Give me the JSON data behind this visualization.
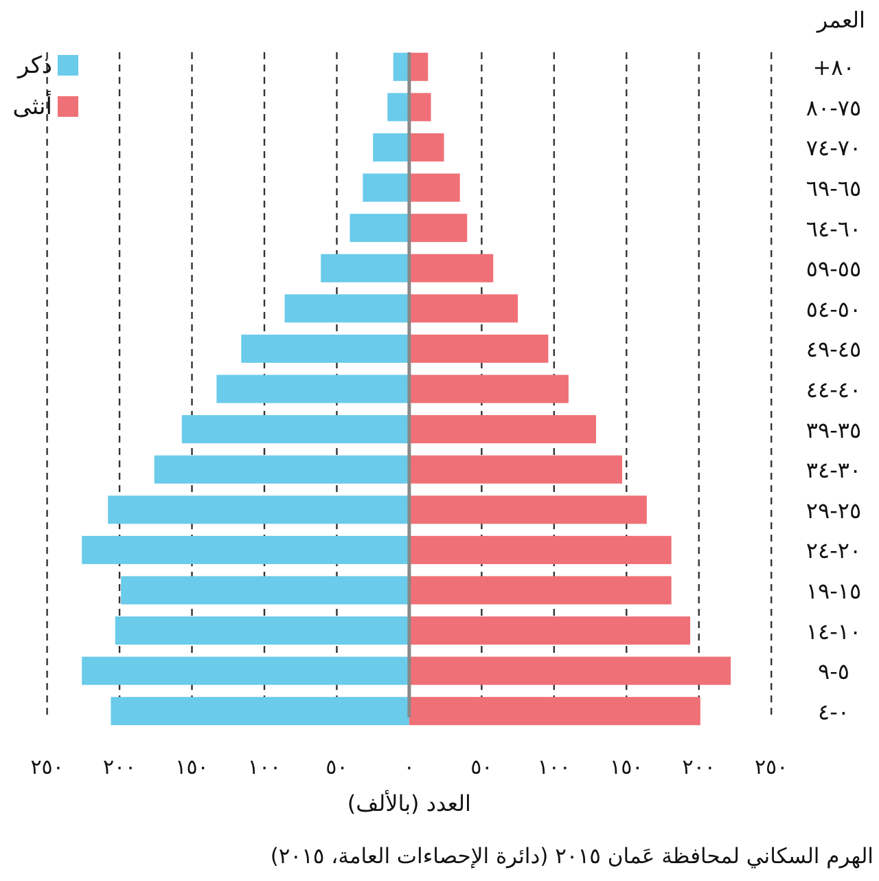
{
  "chart_data": {
    "type": "bar",
    "orientation": "horizontal",
    "ylabel": "العمر",
    "xlabel": "العدد (بالألف)",
    "annotations": [
      "الهرم السكاني لمحافظة عَمان ٢٠١٥ (دائرة الإحصاءات العامة، ٢٠١٥)"
    ],
    "categories": [
      "٨٠+",
      "٧٥-٨٠",
      "٧٠-٧٤",
      "٦٥-٦٩",
      "٦٠-٦٤",
      "٥٥-٥٩",
      "٥٠-٥٤",
      "٤٥-٤٩",
      "٤٠-٤٤",
      "٣٥-٣٩",
      "٣٠-٣٤",
      "٢٥-٢٩",
      "٢٠-٢٤",
      "١٥-١٩",
      "١٠-١٤",
      "٥-٩",
      "٠-٤"
    ],
    "series": [
      {
        "name": "ذكر",
        "color": "#6acbea",
        "values": [
          -11,
          -15,
          -25,
          -32,
          -41,
          -61,
          -86,
          -116,
          -133,
          -157,
          -176,
          -208,
          -226,
          -199,
          -203,
          -226,
          -206
        ]
      },
      {
        "name": "أنثى",
        "color": "#f07077",
        "values": [
          13,
          15,
          24,
          35,
          40,
          58,
          75,
          96,
          110,
          129,
          147,
          164,
          181,
          181,
          194,
          222,
          201
        ]
      }
    ],
    "xlim": [
      -250,
      250
    ],
    "xticks": [
      {
        "value": -250,
        "label": "٢٥٠"
      },
      {
        "value": -200,
        "label": "٢٠٠"
      },
      {
        "value": -150,
        "label": "١٥٠"
      },
      {
        "value": -100,
        "label": "١٠٠"
      },
      {
        "value": -50,
        "label": "٥٠"
      },
      {
        "value": 0,
        "label": "٠"
      },
      {
        "value": 50,
        "label": "٥٠"
      },
      {
        "value": 100,
        "label": "١٠٠"
      },
      {
        "value": 150,
        "label": "١٥٠"
      },
      {
        "value": 200,
        "label": "٢٠٠"
      },
      {
        "value": 250,
        "label": "٢٥٠"
      }
    ],
    "grid": "x",
    "legend": "top left",
    "stacked": true
  }
}
